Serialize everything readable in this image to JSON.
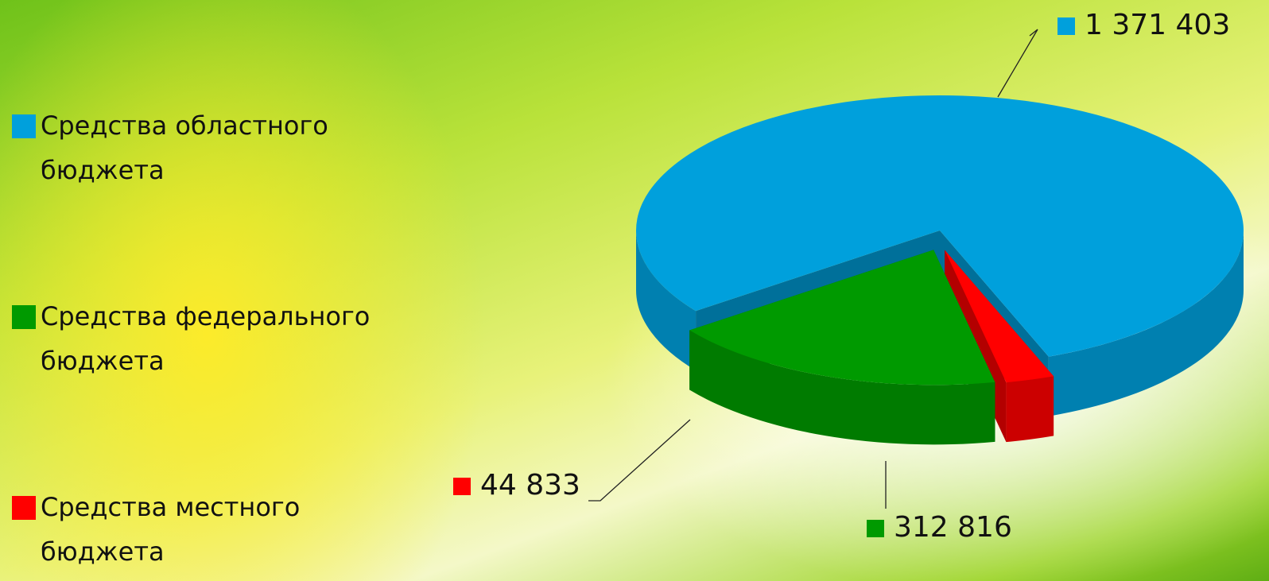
{
  "chart_data": {
    "type": "pie",
    "categories": [
      "Средства областного бюджета",
      "Средства федерального бюджета",
      "Средства местного бюджета"
    ],
    "values": [
      1371403,
      312816,
      44833
    ],
    "value_labels": [
      "1 371 403",
      "312 816",
      "44 833"
    ],
    "colors": [
      "#00a0dc",
      "#009a00",
      "#ff0000"
    ],
    "legend": "left"
  }
}
